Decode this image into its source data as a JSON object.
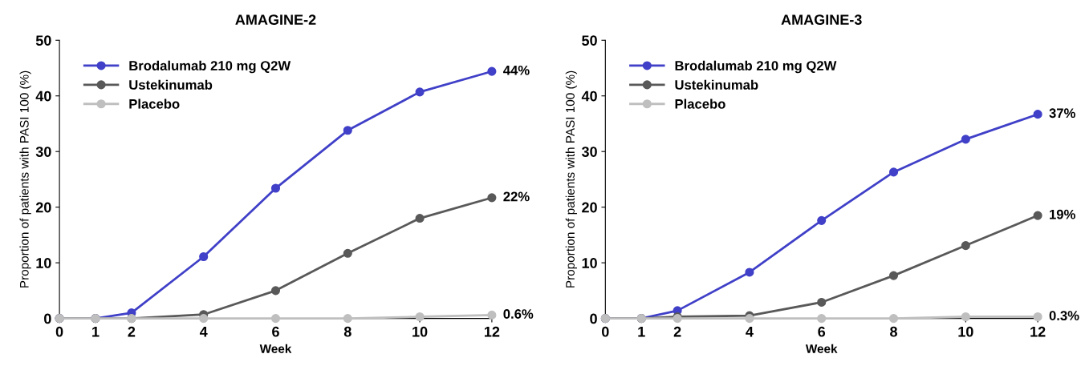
{
  "chart_data": [
    {
      "type": "line",
      "title": "AMAGINE-2",
      "xlabel": "Week",
      "ylabel": "Proportion of patients with PASI 100 (%)",
      "x": [
        0,
        1,
        2,
        4,
        6,
        8,
        10,
        12
      ],
      "series": [
        {
          "name": "Brodalumab 210 mg Q2W",
          "color": "#4040c8",
          "values": [
            0,
            0,
            1.0,
            11.1,
            23.4,
            33.8,
            40.7,
            44.4
          ],
          "value_labels": [
            null,
            null,
            null,
            null,
            null,
            null,
            null,
            "44%"
          ]
        },
        {
          "name": "Ustekinumab",
          "color": "#595959",
          "values": [
            0,
            0,
            0,
            0.7,
            5.0,
            11.7,
            18.0,
            21.7
          ],
          "value_labels": [
            null,
            null,
            null,
            null,
            null,
            null,
            null,
            "22%"
          ]
        },
        {
          "name": "Placebo",
          "color": "#bfbfbf",
          "values": [
            0,
            0,
            0,
            0,
            0,
            0,
            0.3,
            0.6
          ],
          "value_labels": [
            null,
            null,
            null,
            null,
            null,
            null,
            null,
            "0.6%"
          ]
        }
      ],
      "xlim": [
        0,
        12
      ],
      "xticks": [
        0,
        1,
        2,
        4,
        6,
        8,
        10,
        12
      ],
      "ylim": [
        0,
        50
      ],
      "yticks": [
        0,
        10,
        20,
        30,
        40,
        50
      ],
      "grid": false,
      "legend": "top left",
      "marker": "circle",
      "line_style": "solid"
    },
    {
      "type": "line",
      "title": "AMAGINE-3",
      "xlabel": "Week",
      "ylabel": "Proportion of patients with PASI 100 (%)",
      "x": [
        0,
        1,
        2,
        4,
        6,
        8,
        10,
        12
      ],
      "series": [
        {
          "name": "Brodalumab 210 mg Q2W",
          "color": "#4040c8",
          "values": [
            0,
            0,
            1.4,
            8.3,
            17.6,
            26.3,
            32.2,
            36.7
          ],
          "value_labels": [
            null,
            null,
            null,
            null,
            null,
            null,
            null,
            "37%"
          ]
        },
        {
          "name": "Ustekinumab",
          "color": "#595959",
          "values": [
            0,
            0,
            0.3,
            0.5,
            2.9,
            7.7,
            13.1,
            18.5
          ],
          "value_labels": [
            null,
            null,
            null,
            null,
            null,
            null,
            null,
            "19%"
          ]
        },
        {
          "name": "Placebo",
          "color": "#bfbfbf",
          "values": [
            0,
            0,
            0,
            0,
            0,
            0,
            0.3,
            0.3
          ],
          "value_labels": [
            null,
            null,
            null,
            null,
            null,
            null,
            null,
            "0.3%"
          ]
        }
      ],
      "xlim": [
        0,
        12
      ],
      "xticks": [
        0,
        1,
        2,
        4,
        6,
        8,
        10,
        12
      ],
      "ylim": [
        0,
        50
      ],
      "yticks": [
        0,
        10,
        20,
        30,
        40,
        50
      ],
      "grid": false,
      "legend": "top left",
      "marker": "circle",
      "line_style": "solid"
    }
  ]
}
